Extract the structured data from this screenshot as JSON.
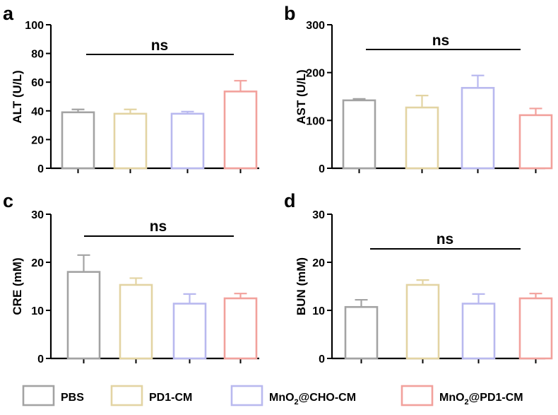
{
  "chart_data": [
    {
      "type": "bar",
      "panel": "a",
      "ylabel": "ALT (U/L)",
      "ylim": [
        0,
        100
      ],
      "yticks": [
        "0",
        "20",
        "40",
        "60",
        "80",
        "100"
      ],
      "categories": [
        "PBS",
        "PD1-CM",
        "MnO2@CHO-CM",
        "MnO2@PD1-CM"
      ],
      "values": [
        39,
        38,
        38,
        53.5
      ],
      "errors": [
        2,
        3,
        1.5,
        7.5
      ],
      "significance": "ns"
    },
    {
      "type": "bar",
      "panel": "b",
      "ylabel": "AST (U/L)",
      "ylim": [
        0,
        300
      ],
      "yticks": [
        "0",
        "100",
        "200",
        "300"
      ],
      "categories": [
        "PBS",
        "PD1-CM",
        "MnO2@CHO-CM",
        "MnO2@PD1-CM"
      ],
      "values": [
        142,
        127,
        168,
        111
      ],
      "errors": [
        3,
        25,
        26,
        14
      ],
      "significance": "ns"
    },
    {
      "type": "bar",
      "panel": "c",
      "ylabel": "CRE (mM)",
      "ylim": [
        0,
        30
      ],
      "yticks": [
        "0",
        "10",
        "20",
        "30"
      ],
      "categories": [
        "PBS",
        "PD1-CM",
        "MnO2@CHO-CM",
        "MnO2@PD1-CM"
      ],
      "values": [
        18,
        15.3,
        11.4,
        12.5
      ],
      "errors": [
        3.5,
        1.4,
        2,
        1
      ],
      "significance": "ns"
    },
    {
      "type": "bar",
      "panel": "d",
      "ylabel": "BUN (mM)",
      "ylim": [
        0,
        30
      ],
      "yticks": [
        "0",
        "10",
        "20",
        "30"
      ],
      "categories": [
        "PBS",
        "PD1-CM",
        "MnO2@CHO-CM",
        "MnO2@PD1-CM"
      ],
      "values": [
        10.7,
        15.3,
        11.4,
        12.5
      ],
      "errors": [
        1.5,
        1,
        2,
        1
      ],
      "significance": "ns"
    }
  ],
  "legend": [
    {
      "label": "PBS",
      "color": "#a3a3a3"
    },
    {
      "label": "PD1-CM",
      "color": "#e3d4a3"
    },
    {
      "label": "MnO2@CHO-CM",
      "label_main": "MnO",
      "label_sub": "2",
      "label_rest": "@CHO-CM",
      "color": "#b9b9ef"
    },
    {
      "label": "MnO2@PD1-CM",
      "label_main": "MnO",
      "label_sub": "2",
      "label_rest": "@PD1-CM",
      "color": "#f2a19c"
    }
  ],
  "colors": [
    "#a3a3a3",
    "#e3d4a3",
    "#b9b9ef",
    "#f2a19c"
  ]
}
